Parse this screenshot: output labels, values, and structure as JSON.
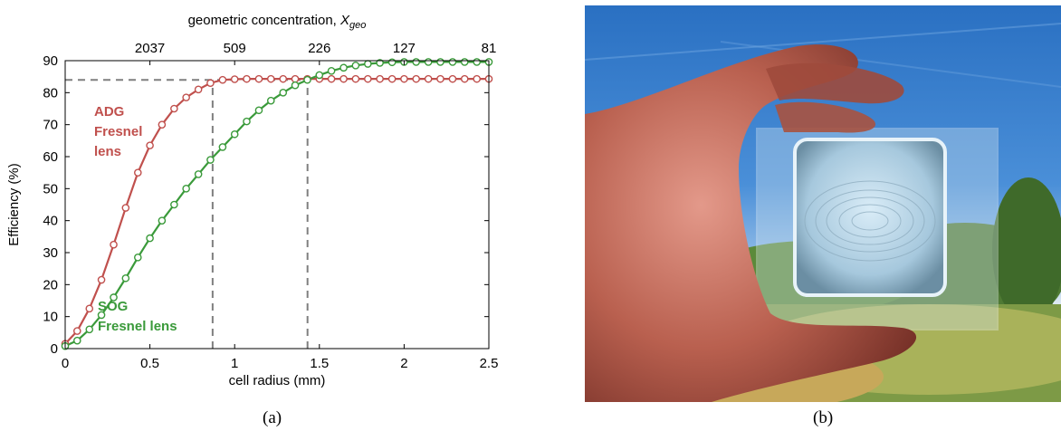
{
  "captions": {
    "a": "(a)",
    "b": "(b)"
  },
  "chart_data": {
    "type": "line",
    "title": "",
    "xlabel": "cell radius (mm)",
    "ylabel": "Efficiency (%)",
    "top_axis_label": "geometric concentration, ",
    "top_axis_symbol": "X",
    "top_axis_subscript": "geo",
    "xlim": [
      0,
      2.5
    ],
    "ylim": [
      0,
      90
    ],
    "xticks": [
      0,
      0.5,
      1,
      1.5,
      2,
      2.5
    ],
    "xtick_labels": [
      "0",
      "0.5",
      "1",
      "1.5",
      "2",
      "2.5"
    ],
    "yticks": [
      0,
      10,
      20,
      30,
      40,
      50,
      60,
      70,
      80,
      90
    ],
    "ytick_labels": [
      "0",
      "10",
      "20",
      "30",
      "40",
      "50",
      "60",
      "70",
      "80",
      "90"
    ],
    "top_ticks": [
      {
        "x": 0.5,
        "label": "2037"
      },
      {
        "x": 1.0,
        "label": "509"
      },
      {
        "x": 1.5,
        "label": "226"
      },
      {
        "x": 2.0,
        "label": "127"
      },
      {
        "x": 2.5,
        "label": "81"
      }
    ],
    "grid": false,
    "colors": {
      "adg": "#c0504d",
      "sog": "#3a9a3a",
      "dashed": "#7f7f7f",
      "axis": "#000000"
    },
    "series": [
      {
        "key": "adg",
        "label_lines": [
          "ADG",
          "Fresnel",
          "lens"
        ],
        "color": "#c0504d",
        "x": [
          0.0,
          0.071,
          0.143,
          0.214,
          0.286,
          0.357,
          0.429,
          0.5,
          0.571,
          0.643,
          0.714,
          0.786,
          0.857,
          0.929,
          1.0,
          1.071,
          1.143,
          1.214,
          1.286,
          1.357,
          1.429,
          1.5,
          1.571,
          1.643,
          1.714,
          1.786,
          1.857,
          1.929,
          2.0,
          2.071,
          2.143,
          2.214,
          2.286,
          2.357,
          2.429,
          2.5
        ],
        "y": [
          1.5,
          5.5,
          12.5,
          21.5,
          32.5,
          44.0,
          55.0,
          63.5,
          70.0,
          75.0,
          78.5,
          81.0,
          83.0,
          84.0,
          84.2,
          84.3,
          84.3,
          84.3,
          84.3,
          84.3,
          84.3,
          84.3,
          84.3,
          84.3,
          84.3,
          84.3,
          84.3,
          84.3,
          84.3,
          84.3,
          84.3,
          84.3,
          84.3,
          84.3,
          84.3,
          84.3
        ]
      },
      {
        "key": "sog",
        "label_lines": [
          "SOG",
          "Fresnel lens"
        ],
        "color": "#3a9a3a",
        "x": [
          0.0,
          0.071,
          0.143,
          0.214,
          0.286,
          0.357,
          0.429,
          0.5,
          0.571,
          0.643,
          0.714,
          0.786,
          0.857,
          0.929,
          1.0,
          1.071,
          1.143,
          1.214,
          1.286,
          1.357,
          1.429,
          1.5,
          1.571,
          1.643,
          1.714,
          1.786,
          1.857,
          1.929,
          2.0,
          2.071,
          2.143,
          2.214,
          2.286,
          2.357,
          2.429,
          2.5
        ],
        "y": [
          0.8,
          2.5,
          6.0,
          10.5,
          16.0,
          22.0,
          28.5,
          34.5,
          40.0,
          45.0,
          50.0,
          54.5,
          59.0,
          63.0,
          67.0,
          71.0,
          74.5,
          77.5,
          80.0,
          82.3,
          84.0,
          85.5,
          86.8,
          87.8,
          88.5,
          89.0,
          89.3,
          89.5,
          89.6,
          89.6,
          89.6,
          89.6,
          89.6,
          89.6,
          89.6,
          89.6
        ]
      }
    ],
    "annotations": [
      {
        "type": "dashed_hline",
        "y": 84.0,
        "x_from": 0.0,
        "x_to": 1.43
      },
      {
        "type": "dashed_vline",
        "x": 0.87,
        "y_from": 0,
        "y_to": 84.0
      },
      {
        "type": "dashed_vline",
        "x": 1.43,
        "y_from": 0,
        "y_to": 84.0
      }
    ]
  },
  "photo": {
    "description_icon": "hand-holding-fresnel-lens-photo"
  }
}
